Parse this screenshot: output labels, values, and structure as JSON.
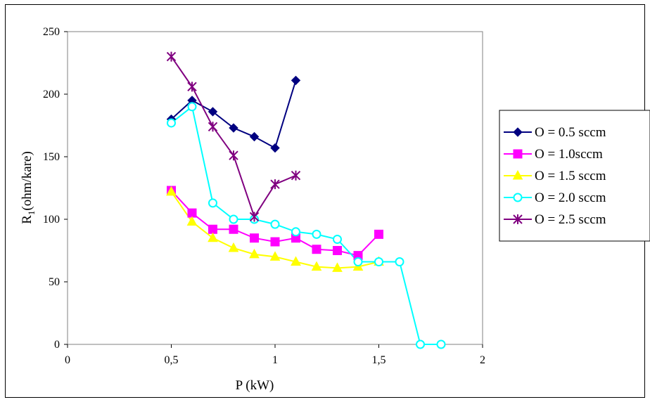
{
  "chart_data": {
    "type": "scatter",
    "xlabel": "P (kW)",
    "ylabel_main": "R",
    "ylabel_sub": "1",
    "ylabel_rest": "(ohm/kare)",
    "xlim": [
      0,
      2
    ],
    "ylim": [
      0,
      250
    ],
    "x_ticks": [
      {
        "value": 0,
        "label": "0"
      },
      {
        "value": 0.5,
        "label": "0,5"
      },
      {
        "value": 1,
        "label": "1"
      },
      {
        "value": 1.5,
        "label": "1,5"
      },
      {
        "value": 2,
        "label": "2"
      }
    ],
    "y_ticks": [
      {
        "value": 0,
        "label": "0"
      },
      {
        "value": 50,
        "label": "50"
      },
      {
        "value": 100,
        "label": "100"
      },
      {
        "value": 150,
        "label": "150"
      },
      {
        "value": 200,
        "label": "200"
      },
      {
        "value": 250,
        "label": "250"
      }
    ],
    "legend_position": "right",
    "grid": false,
    "series": [
      {
        "name": "O = 0.5 sccm",
        "color": "#000080",
        "marker": "diamond",
        "x": [
          0.5,
          0.6,
          0.7,
          0.8,
          0.9,
          1.0,
          1.1
        ],
        "y": [
          180,
          195,
          186,
          173,
          166,
          157,
          211
        ]
      },
      {
        "name": "O = 1.0sccm",
        "color": "#ff00ff",
        "marker": "square",
        "x": [
          0.5,
          0.6,
          0.7,
          0.8,
          0.9,
          1.0,
          1.1,
          1.2,
          1.3,
          1.4,
          1.5
        ],
        "y": [
          123,
          105,
          92,
          92,
          85,
          82,
          85,
          76,
          75,
          71,
          88
        ]
      },
      {
        "name": "O = 1.5 sccm",
        "color": "#ffff00",
        "marker": "triangle",
        "x": [
          0.5,
          0.6,
          0.7,
          0.8,
          0.9,
          1.0,
          1.1,
          1.2,
          1.3,
          1.4,
          1.5
        ],
        "y": [
          122,
          98,
          85,
          77,
          72,
          70,
          66,
          62,
          61,
          62,
          66
        ]
      },
      {
        "name": "O = 2.0 sccm",
        "color": "#00ffff",
        "marker": "circle",
        "x": [
          0.5,
          0.6,
          0.7,
          0.8,
          0.9,
          1.0,
          1.1,
          1.2,
          1.3,
          1.4,
          1.5,
          1.6,
          1.7,
          1.8
        ],
        "y": [
          177,
          190,
          113,
          100,
          100,
          96,
          90,
          88,
          84,
          66,
          66,
          66,
          0,
          0
        ]
      },
      {
        "name": "O = 2.5 sccm",
        "color": "#800080",
        "marker": "star",
        "x": [
          0.5,
          0.6,
          0.7,
          0.8,
          0.9,
          1.0,
          1.1
        ],
        "y": [
          230,
          206,
          174,
          151,
          102,
          128,
          135
        ]
      }
    ]
  }
}
